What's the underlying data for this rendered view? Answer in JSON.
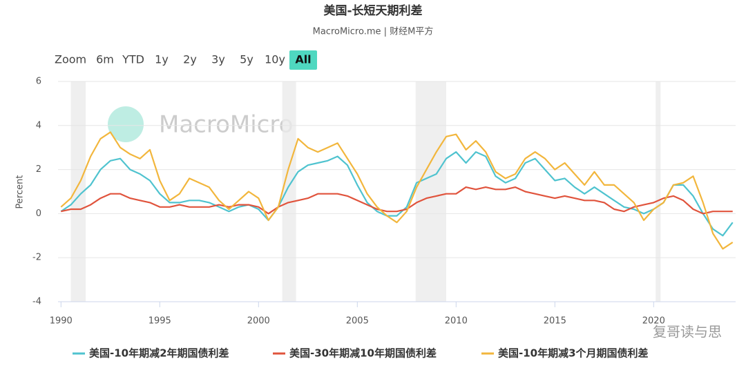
{
  "toolbar": {
    "zoom_label": "Zoom",
    "range_buttons": [
      {
        "label": "6m"
      },
      {
        "label": "YTD"
      },
      {
        "label": "1y"
      },
      {
        "label": "2y"
      },
      {
        "label": "3y"
      },
      {
        "label": "5y"
      },
      {
        "label": "10y"
      },
      {
        "label": "All",
        "selected": true
      }
    ]
  },
  "watermark": "MacroMicro",
  "corner_watermark": "复哥读与思",
  "chart_data": {
    "type": "line",
    "title": "美国-长短天期利差",
    "subtitle": "MacroMicro.me | 财经M平方",
    "y_label": "Percent",
    "xlim": [
      1989.85,
      2024.15
    ],
    "xticks": [
      1990,
      1995,
      2000,
      2005,
      2010,
      2015,
      2020
    ],
    "ylim": [
      -4,
      6
    ],
    "yticks": [
      -4,
      -2,
      0,
      2,
      4,
      6
    ],
    "grid": true,
    "legend": "bottom",
    "recessions": [
      [
        1990.5,
        1991.25
      ],
      [
        2001.2,
        2001.9
      ],
      [
        2007.95,
        2009.5
      ],
      [
        2020.1,
        2020.35
      ]
    ],
    "x": [
      1990,
      1990.5,
      1991,
      1991.5,
      1992,
      1992.5,
      1993,
      1993.5,
      1994,
      1994.5,
      1995,
      1995.5,
      1996,
      1996.5,
      1997,
      1997.5,
      1998,
      1998.5,
      1999,
      1999.5,
      2000,
      2000.5,
      2001,
      2001.5,
      2002,
      2002.5,
      2003,
      2003.5,
      2004,
      2004.5,
      2005,
      2005.5,
      2006,
      2006.5,
      2007,
      2007.5,
      2008,
      2008.5,
      2009,
      2009.5,
      2010,
      2010.5,
      2011,
      2011.5,
      2012,
      2012.5,
      2013,
      2013.5,
      2014,
      2014.5,
      2015,
      2015.5,
      2016,
      2016.5,
      2017,
      2017.5,
      2018,
      2018.5,
      2019,
      2019.5,
      2020,
      2020.5,
      2021,
      2021.5,
      2022,
      2022.5,
      2023,
      2023.5,
      2024
    ],
    "series": [
      {
        "name": "美国-10年期减2年期国债利差",
        "color": "#4fc3cf",
        "values": [
          0.1,
          0.4,
          0.9,
          1.3,
          2.0,
          2.4,
          2.5,
          2.0,
          1.8,
          1.5,
          0.9,
          0.5,
          0.5,
          0.6,
          0.6,
          0.5,
          0.3,
          0.1,
          0.3,
          0.4,
          0.2,
          -0.3,
          0.3,
          1.2,
          1.9,
          2.2,
          2.3,
          2.4,
          2.6,
          2.2,
          1.3,
          0.5,
          0.1,
          -0.1,
          -0.1,
          0.3,
          1.4,
          1.6,
          1.8,
          2.5,
          2.8,
          2.3,
          2.8,
          2.6,
          1.7,
          1.4,
          1.6,
          2.3,
          2.5,
          2.0,
          1.5,
          1.6,
          1.2,
          0.9,
          1.2,
          0.9,
          0.6,
          0.3,
          0.2,
          0.0,
          0.2,
          0.5,
          1.3,
          1.3,
          0.8,
          0.0,
          -0.7,
          -1.0,
          -0.4
        ]
      },
      {
        "name": "美国-30年期减10年期国债利差",
        "color": "#e0533c",
        "values": [
          0.1,
          0.2,
          0.2,
          0.4,
          0.7,
          0.9,
          0.9,
          0.7,
          0.6,
          0.5,
          0.3,
          0.3,
          0.4,
          0.3,
          0.3,
          0.3,
          0.4,
          0.3,
          0.4,
          0.4,
          0.3,
          0.0,
          0.3,
          0.5,
          0.6,
          0.7,
          0.9,
          0.9,
          0.9,
          0.8,
          0.6,
          0.4,
          0.2,
          0.1,
          0.1,
          0.2,
          0.5,
          0.7,
          0.8,
          0.9,
          0.9,
          1.2,
          1.1,
          1.2,
          1.1,
          1.1,
          1.2,
          1.0,
          0.9,
          0.8,
          0.7,
          0.8,
          0.7,
          0.6,
          0.6,
          0.5,
          0.2,
          0.1,
          0.3,
          0.4,
          0.5,
          0.7,
          0.8,
          0.6,
          0.2,
          0.0,
          0.1,
          0.1,
          0.1
        ]
      },
      {
        "name": "美国-10年期减3个月期国债利差",
        "color": "#f2b63c",
        "values": [
          0.3,
          0.7,
          1.5,
          2.6,
          3.4,
          3.7,
          3.0,
          2.7,
          2.5,
          2.9,
          1.5,
          0.6,
          0.9,
          1.6,
          1.4,
          1.2,
          0.6,
          0.2,
          0.6,
          1.0,
          0.7,
          -0.3,
          0.3,
          2.0,
          3.4,
          3.0,
          2.8,
          3.0,
          3.2,
          2.5,
          1.8,
          0.9,
          0.3,
          -0.1,
          -0.4,
          0.1,
          1.2,
          2.0,
          2.8,
          3.5,
          3.6,
          2.9,
          3.3,
          2.8,
          1.9,
          1.6,
          1.8,
          2.5,
          2.8,
          2.5,
          2.0,
          2.3,
          1.8,
          1.3,
          1.9,
          1.3,
          1.3,
          0.9,
          0.5,
          -0.3,
          0.2,
          0.5,
          1.3,
          1.4,
          1.7,
          0.5,
          -0.9,
          -1.6,
          -1.3
        ]
      }
    ]
  }
}
